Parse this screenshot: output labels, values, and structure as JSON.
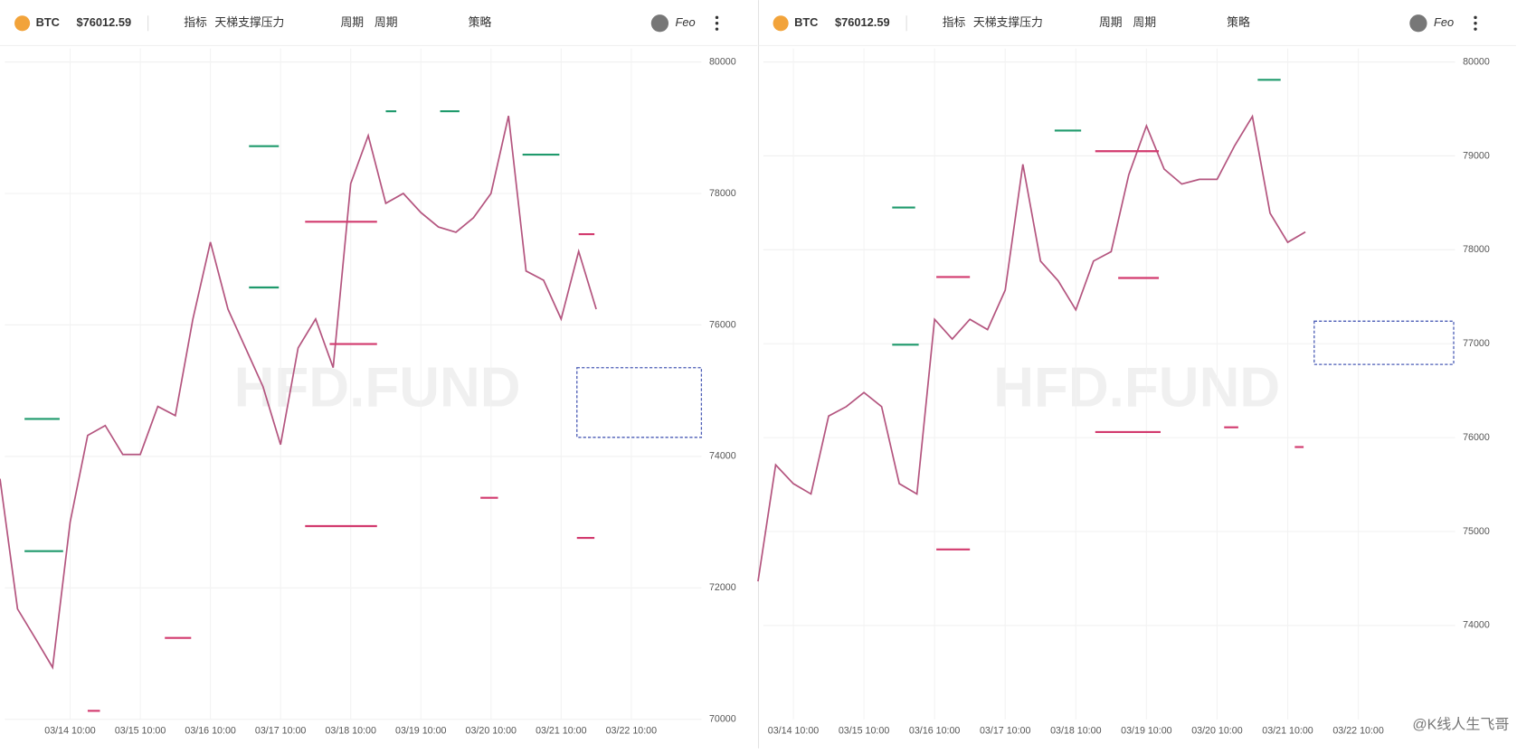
{
  "panels": [
    {
      "header": {
        "symbol": "BTC",
        "price": "$76012.59",
        "menus": [
          "指标",
          "天梯支撑压力",
          "周期",
          "周期",
          "策略"
        ],
        "account": "Feo"
      }
    },
    {
      "header": {
        "symbol": "BTC",
        "price": "$76012.59",
        "menus": [
          "指标",
          "天梯支撑压力",
          "周期",
          "周期",
          "策略"
        ],
        "account": "Feo"
      }
    }
  ],
  "watermark": "HFD.FUND",
  "credit": "@K线人生飞哥",
  "chart_data": [
    {
      "type": "line",
      "color": "#b4557f",
      "grid": true,
      "categories": [
        null,
        null,
        null,
        null,
        "03/14 10:00",
        null,
        null,
        null,
        "03/15 10:00",
        null,
        null,
        null,
        "03/16 10:00",
        null,
        null,
        null,
        "03/17 10:00",
        null,
        null,
        null,
        "03/18 10:00",
        null,
        null,
        null,
        "03/19 10:00",
        null,
        null,
        null,
        "03/20 10:00",
        null,
        null,
        null,
        "03/21 10:00",
        null,
        null,
        null,
        "03/22 10:00"
      ],
      "values": [
        73660,
        71680,
        71240,
        70790,
        73000,
        74320,
        74470,
        74030,
        74030,
        74760,
        74620,
        76090,
        77260,
        76240,
        75650,
        75060,
        74180,
        75650,
        76090,
        75350,
        78150,
        78880,
        77850,
        78000,
        77710,
        77490,
        77410,
        77630,
        78000,
        79180,
        76820,
        76680,
        76090,
        77120,
        76240,
        null,
        null
      ],
      "ylim": [
        70000,
        80000
      ],
      "yticks": [
        70000,
        72000,
        74000,
        76000,
        78000,
        80000
      ],
      "levels": [
        {
          "x": [
            1.4,
            3.4
          ],
          "y": 74570,
          "color": "#1f9a6c"
        },
        {
          "x": [
            1.4,
            3.6
          ],
          "y": 72560,
          "color": "#1f9a6c"
        },
        {
          "x": [
            14.2,
            15.9
          ],
          "y": 78720,
          "color": "#1f9a6c"
        },
        {
          "x": [
            14.2,
            15.9
          ],
          "y": 76570,
          "color": "#1f9a6c"
        },
        {
          "x": [
            17.4,
            21.5
          ],
          "y": 72940,
          "color": "#d23a6e"
        },
        {
          "x": [
            9.4,
            10.9
          ],
          "y": 71240,
          "color": "#d23a6e"
        },
        {
          "x": [
            5,
            5.7
          ],
          "y": 70130,
          "color": "#d23a6e"
        },
        {
          "x": [
            17.4,
            21.5
          ],
          "y": 77570,
          "color": "#d23a6e"
        },
        {
          "x": [
            18.8,
            21.5
          ],
          "y": 75710,
          "color": "#d23a6e"
        },
        {
          "x": [
            22,
            22.6
          ],
          "y": 79250,
          "color": "#1f9a6c"
        },
        {
          "x": [
            25.1,
            26.2
          ],
          "y": 79250,
          "color": "#1f9a6c"
        },
        {
          "x": [
            29.8,
            31.9
          ],
          "y": 78590,
          "color": "#1f9a6c"
        },
        {
          "x": [
            27.4,
            28.4
          ],
          "y": 73370,
          "color": "#d23a6e"
        },
        {
          "x": [
            32.9,
            33.9
          ],
          "y": 72760,
          "color": "#d23a6e"
        },
        {
          "x": [
            33,
            33.9
          ],
          "y": 77380,
          "color": "#d23a6e"
        }
      ],
      "zone": {
        "x": [
          32.9,
          40
        ],
        "y": [
          75350,
          74290
        ],
        "color": "#4a5bb5"
      }
    },
    {
      "type": "line",
      "color": "#b4557f",
      "grid": true,
      "categories": [
        null,
        null,
        "03/14 10:00",
        null,
        null,
        null,
        "03/15 10:00",
        null,
        null,
        null,
        "03/16 10:00",
        null,
        null,
        null,
        "03/17 10:00",
        null,
        null,
        null,
        "03/18 10:00",
        null,
        null,
        null,
        "03/19 10:00",
        null,
        null,
        null,
        "03/20 10:00",
        null,
        null,
        null,
        "03/21 10:00",
        null,
        null,
        null,
        "03/22 10:00"
      ],
      "values": [
        74470,
        75710,
        75510,
        75400,
        76230,
        76330,
        76480,
        76330,
        75510,
        75400,
        77260,
        77050,
        77260,
        77150,
        77570,
        78910,
        77880,
        77670,
        77360,
        77880,
        77980,
        78800,
        79320,
        78860,
        78700,
        78750,
        78750,
        79110,
        79420,
        78390,
        78080,
        78190,
        null,
        null,
        null
      ],
      "ylim": [
        73000,
        80000
      ],
      "yticks": [
        74000,
        75000,
        76000,
        77000,
        78000,
        79000,
        80000
      ],
      "levels": [
        {
          "x": [
            7.6,
            8.9
          ],
          "y": 78450,
          "color": "#1f9a6c"
        },
        {
          "x": [
            7.6,
            9.1
          ],
          "y": 76990,
          "color": "#1f9a6c"
        },
        {
          "x": [
            10.1,
            12
          ],
          "y": 74810,
          "color": "#d23a6e"
        },
        {
          "x": [
            10.1,
            12
          ],
          "y": 77710,
          "color": "#d23a6e"
        },
        {
          "x": [
            16.8,
            18.3
          ],
          "y": 79270,
          "color": "#1f9a6c"
        },
        {
          "x": [
            19.1,
            22.7
          ],
          "y": 79050,
          "color": "#d23a6e"
        },
        {
          "x": [
            19.1,
            22.8
          ],
          "y": 76060,
          "color": "#d23a6e"
        },
        {
          "x": [
            20.4,
            22.7
          ],
          "y": 77700,
          "color": "#d23a6e"
        },
        {
          "x": [
            28.3,
            29.6
          ],
          "y": 79810,
          "color": "#1f9a6c"
        },
        {
          "x": [
            26.4,
            27.2
          ],
          "y": 76110,
          "color": "#d23a6e"
        },
        {
          "x": [
            30.4,
            30.9
          ],
          "y": 75900,
          "color": "#d23a6e"
        }
      ],
      "zone": {
        "x": [
          31.5,
          39.4
        ],
        "y": [
          77240,
          76780
        ],
        "color": "#4a5bb5"
      }
    }
  ]
}
